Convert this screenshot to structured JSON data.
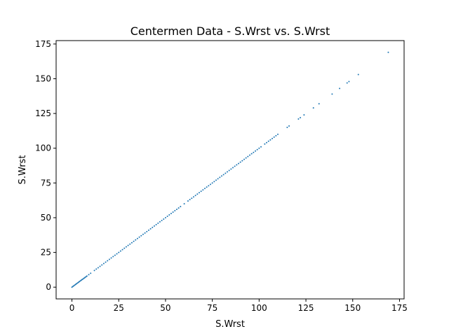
{
  "chart_data": {
    "type": "scatter",
    "title": "Centermen Data - S.Wrst vs. S.Wrst",
    "xlabel": "S.Wrst",
    "ylabel": "S.Wrst",
    "xlim": [
      -8.45,
      177.45
    ],
    "ylim": [
      -8.45,
      177.45
    ],
    "xticks": [
      0,
      25,
      50,
      75,
      100,
      125,
      150,
      175
    ],
    "yticks": [
      0,
      25,
      50,
      75,
      100,
      125,
      150,
      175
    ],
    "tick_labels": [
      "0",
      "25",
      "50",
      "75",
      "100",
      "125",
      "150",
      "175"
    ],
    "grid": false,
    "marker_color": "#1f77b4",
    "series": [
      {
        "x": [
          0,
          0.5,
          1,
          1.5,
          2,
          2.5,
          3,
          3.5,
          4,
          4.5,
          5,
          5.5,
          6,
          6.5,
          7,
          7.5,
          8,
          9,
          10,
          12,
          13,
          14,
          15,
          16,
          17,
          18,
          19,
          20,
          21,
          22,
          23,
          24,
          25,
          26,
          27,
          28,
          29,
          30,
          31,
          32,
          33,
          34,
          35,
          36,
          37,
          38,
          39,
          40,
          41,
          42,
          43,
          44,
          45,
          46,
          47,
          48,
          49,
          50,
          51,
          52,
          53,
          54,
          55,
          56,
          57,
          58,
          60,
          62,
          63,
          64,
          65,
          66,
          67,
          68,
          69,
          70,
          71,
          72,
          73,
          74,
          75,
          76,
          77,
          78,
          79,
          80,
          81,
          82,
          83,
          84,
          85,
          86,
          87,
          88,
          89,
          90,
          91,
          92,
          93,
          94,
          95,
          96,
          97,
          98,
          99,
          100,
          101,
          103,
          104,
          105,
          106,
          107,
          108,
          109,
          110,
          115,
          116,
          121,
          122,
          124,
          129,
          132,
          139,
          143,
          147,
          148,
          153,
          169
        ],
        "y": [
          0,
          0.5,
          1,
          1.5,
          2,
          2.5,
          3,
          3.5,
          4,
          4.5,
          5,
          5.5,
          6,
          6.5,
          7,
          7.5,
          8,
          9,
          10,
          12,
          13,
          14,
          15,
          16,
          17,
          18,
          19,
          20,
          21,
          22,
          23,
          24,
          25,
          26,
          27,
          28,
          29,
          30,
          31,
          32,
          33,
          34,
          35,
          36,
          37,
          38,
          39,
          40,
          41,
          42,
          43,
          44,
          45,
          46,
          47,
          48,
          49,
          50,
          51,
          52,
          53,
          54,
          55,
          56,
          57,
          58,
          60,
          62,
          63,
          64,
          65,
          66,
          67,
          68,
          69,
          70,
          71,
          72,
          73,
          74,
          75,
          76,
          77,
          78,
          79,
          80,
          81,
          82,
          83,
          84,
          85,
          86,
          87,
          88,
          89,
          90,
          91,
          92,
          93,
          94,
          95,
          96,
          97,
          98,
          99,
          100,
          101,
          103,
          104,
          105,
          106,
          107,
          108,
          109,
          110,
          115,
          116,
          121,
          122,
          124,
          129,
          132,
          139,
          143,
          147,
          148,
          153,
          169
        ]
      }
    ]
  }
}
